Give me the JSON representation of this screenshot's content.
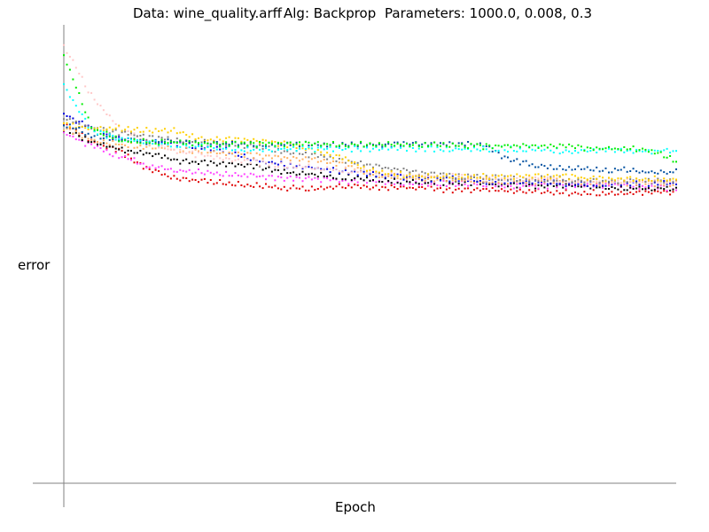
{
  "header": {
    "data_label": "Data: wine_quality.arff",
    "alg_label": "Alg: Backprop",
    "params_label": "Parameters: 1000.0, 0.008, 0.3"
  },
  "axes": {
    "xlabel": "Epoch",
    "ylabel": "error"
  },
  "chart_data": {
    "type": "scatter",
    "title": "",
    "xlabel": "Epoch",
    "ylabel": "error",
    "xlim": [
      0,
      1000
    ],
    "ylim": [
      0,
      1
    ],
    "grid": false,
    "legend": "none",
    "series": [
      {
        "color": "#e00000",
        "values": [
          0.78,
          0.74,
          0.72,
          0.68,
          0.66,
          0.655,
          0.65,
          0.645,
          0.64,
          0.64,
          0.645,
          0.64,
          0.64,
          0.64,
          0.635,
          0.635,
          0.635,
          0.635,
          0.63,
          0.63,
          0.63,
          0.63,
          0.63
        ]
      },
      {
        "color": "#ff40ff",
        "values": [
          0.76,
          0.73,
          0.71,
          0.69,
          0.68,
          0.675,
          0.67,
          0.665,
          0.66,
          0.66,
          0.655,
          0.655,
          0.65,
          0.65,
          0.65,
          0.65,
          0.645,
          0.645,
          0.645,
          0.645,
          0.645,
          0.64,
          0.64
        ]
      },
      {
        "color": "#000000",
        "values": [
          0.77,
          0.74,
          0.725,
          0.715,
          0.7,
          0.695,
          0.69,
          0.685,
          0.675,
          0.67,
          0.665,
          0.66,
          0.655,
          0.655,
          0.65,
          0.65,
          0.645,
          0.645,
          0.645,
          0.645,
          0.64,
          0.64,
          0.64
        ]
      },
      {
        "color": "#0000dd",
        "values": [
          0.8,
          0.77,
          0.745,
          0.74,
          0.735,
          0.73,
          0.72,
          0.7,
          0.69,
          0.685,
          0.675,
          0.67,
          0.665,
          0.66,
          0.66,
          0.655,
          0.655,
          0.655,
          0.65,
          0.65,
          0.65,
          0.65,
          0.65
        ]
      },
      {
        "color": "#ffb060",
        "values": [
          0.77,
          0.745,
          0.735,
          0.73,
          0.725,
          0.72,
          0.715,
          0.71,
          0.705,
          0.7,
          0.69,
          0.67,
          0.665,
          0.66,
          0.66,
          0.655,
          0.655,
          0.655,
          0.655,
          0.65,
          0.65,
          0.65,
          0.65
        ]
      },
      {
        "color": "#ffc8c8",
        "values": [
          0.95,
          0.84,
          0.77,
          0.74,
          0.72,
          0.71,
          0.7,
          0.695,
          0.69,
          0.685,
          0.68,
          0.675,
          0.67,
          0.665,
          0.665,
          0.66,
          0.66,
          0.66,
          0.655,
          0.655,
          0.655,
          0.655,
          0.655
        ]
      },
      {
        "color": "#808080",
        "values": [
          0.79,
          0.77,
          0.76,
          0.75,
          0.745,
          0.74,
          0.735,
          0.73,
          0.72,
          0.71,
          0.7,
          0.69,
          0.68,
          0.67,
          0.665,
          0.665,
          0.66,
          0.66,
          0.66,
          0.655,
          0.655,
          0.655,
          0.655
        ]
      },
      {
        "color": "#ffd000",
        "values": [
          0.78,
          0.77,
          0.77,
          0.765,
          0.765,
          0.745,
          0.745,
          0.74,
          0.735,
          0.72,
          0.705,
          0.68,
          0.67,
          0.665,
          0.665,
          0.665,
          0.665,
          0.665,
          0.665,
          0.66,
          0.66,
          0.66,
          0.66
        ]
      },
      {
        "color": "#0050a0",
        "values": [
          0.78,
          0.755,
          0.745,
          0.74,
          0.74,
          0.735,
          0.735,
          0.735,
          0.735,
          0.735,
          0.735,
          0.735,
          0.735,
          0.735,
          0.735,
          0.735,
          0.7,
          0.69,
          0.685,
          0.68,
          0.68,
          0.675,
          0.675
        ]
      },
      {
        "color": "#00ffff",
        "values": [
          0.86,
          0.765,
          0.745,
          0.74,
          0.735,
          0.73,
          0.725,
          0.725,
          0.725,
          0.725,
          0.725,
          0.725,
          0.725,
          0.725,
          0.725,
          0.725,
          0.725,
          0.725,
          0.72,
          0.72,
          0.72,
          0.72,
          0.72
        ]
      },
      {
        "color": "#00ee00",
        "values": [
          0.93,
          0.77,
          0.745,
          0.74,
          0.74,
          0.735,
          0.735,
          0.735,
          0.735,
          0.735,
          0.735,
          0.735,
          0.735,
          0.735,
          0.735,
          0.73,
          0.73,
          0.73,
          0.73,
          0.725,
          0.725,
          0.725,
          0.7
        ]
      }
    ]
  }
}
